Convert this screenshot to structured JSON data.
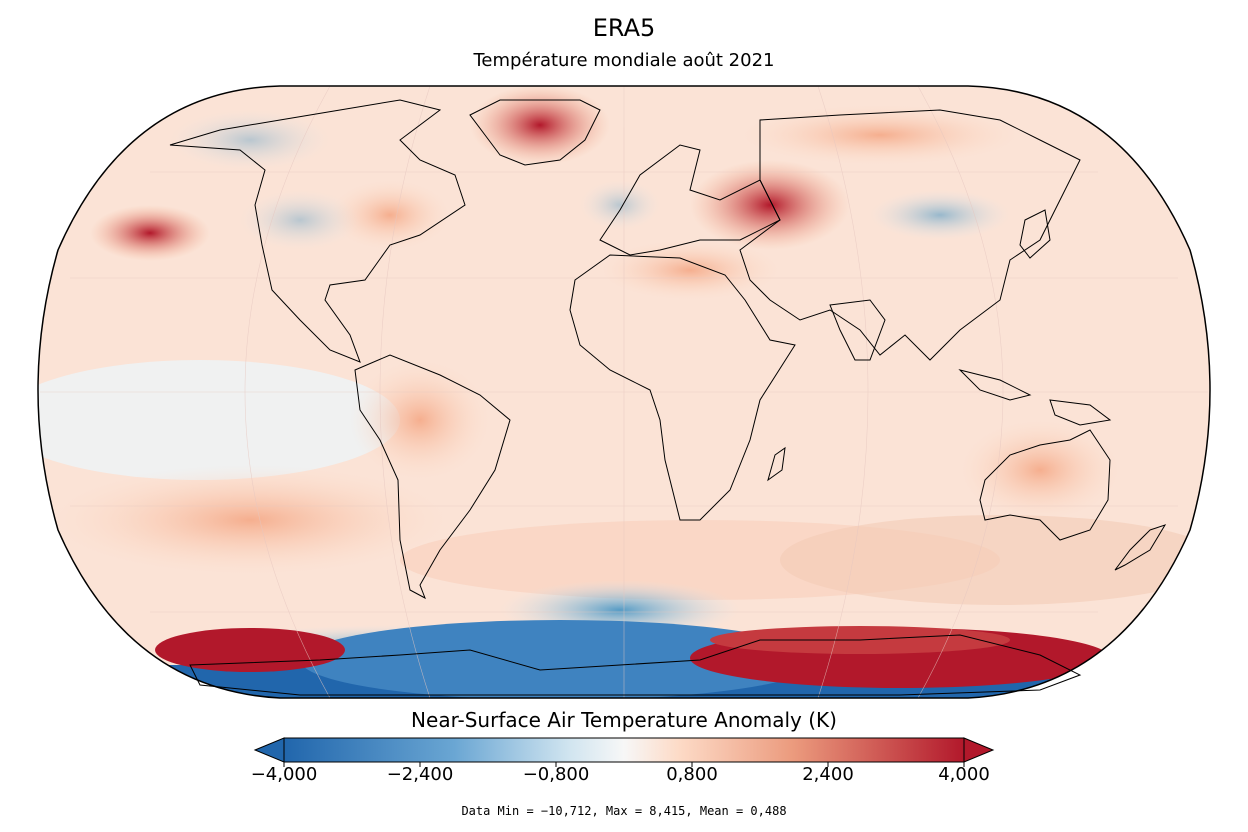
{
  "title": "ERA5",
  "subtitle": "Température mondiale août 2021",
  "colorbar": {
    "label": "Near-Surface Air Temperature Anomaly (K)",
    "ticks": [
      "−4,000",
      "−2,400",
      "−0,800",
      "0,800",
      "2,400",
      "4,000"
    ],
    "tick_values": [
      -4.0,
      -2.4,
      -0.8,
      0.8,
      2.4,
      4.0
    ],
    "range": [
      -4.0,
      4.0
    ],
    "extend": "both",
    "colors": {
      "cold": "#2166ac",
      "mid": "#f7f7f7",
      "warm": "#b2182b"
    }
  },
  "stats": "Data Min = −10,712, Max = 8,415, Mean = 0,488",
  "projection": "Robinson"
}
